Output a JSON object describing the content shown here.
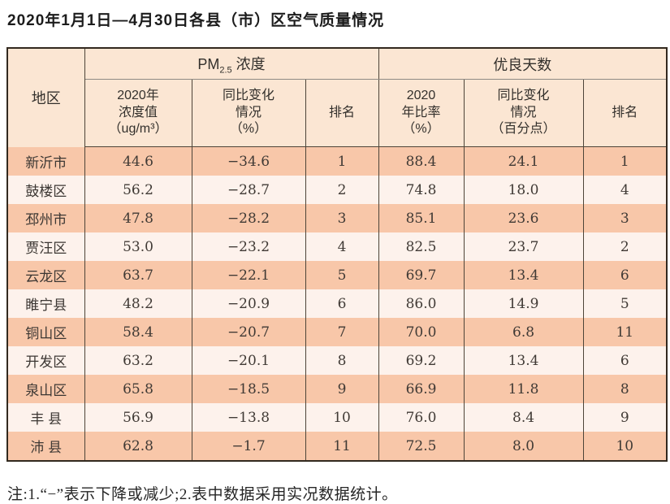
{
  "title": "2020年1月1日—4月30日各县（市）区空气质量情况",
  "table": {
    "headers": {
      "region": "地区",
      "pm_group_prefix": "PM",
      "pm_group_sub": "2.5",
      "pm_group_suffix": " 浓度",
      "good_group": "优良天数",
      "pm_value": "2020年\n浓度值\n（ug/m³）",
      "pm_change": "同比变化\n情况\n（%）",
      "pm_rank": "排名",
      "rate_value": "2020\n年比率\n（%）",
      "rate_change": "同比变化\n情况\n（百分点）",
      "rate_rank": "排名"
    },
    "rows": [
      {
        "region": "新沂市",
        "pm_value": "44.6",
        "pm_change": "−34.6",
        "pm_rank": "1",
        "rate_value": "88.4",
        "rate_change": "24.1",
        "rate_rank": "1"
      },
      {
        "region": "鼓楼区",
        "pm_value": "56.2",
        "pm_change": "−28.7",
        "pm_rank": "2",
        "rate_value": "74.8",
        "rate_change": "18.0",
        "rate_rank": "4"
      },
      {
        "region": "邳州市",
        "pm_value": "47.8",
        "pm_change": "−28.2",
        "pm_rank": "3",
        "rate_value": "85.1",
        "rate_change": "23.6",
        "rate_rank": "3"
      },
      {
        "region": "贾汪区",
        "pm_value": "53.0",
        "pm_change": "−23.2",
        "pm_rank": "4",
        "rate_value": "82.5",
        "rate_change": "23.7",
        "rate_rank": "2"
      },
      {
        "region": "云龙区",
        "pm_value": "63.7",
        "pm_change": "−22.1",
        "pm_rank": "5",
        "rate_value": "69.7",
        "rate_change": "13.4",
        "rate_rank": "6"
      },
      {
        "region": "睢宁县",
        "pm_value": "48.2",
        "pm_change": "−20.9",
        "pm_rank": "6",
        "rate_value": "86.0",
        "rate_change": "14.9",
        "rate_rank": "5"
      },
      {
        "region": "铜山区",
        "pm_value": "58.4",
        "pm_change": "−20.7",
        "pm_rank": "7",
        "rate_value": "70.0",
        "rate_change": "6.8",
        "rate_rank": "11"
      },
      {
        "region": "开发区",
        "pm_value": "63.2",
        "pm_change": "−20.1",
        "pm_rank": "8",
        "rate_value": "69.2",
        "rate_change": "13.4",
        "rate_rank": "6"
      },
      {
        "region": "泉山区",
        "pm_value": "65.8",
        "pm_change": "−18.5",
        "pm_rank": "9",
        "rate_value": "66.9",
        "rate_change": "11.8",
        "rate_rank": "8"
      },
      {
        "region": "丰 县",
        "pm_value": "56.9",
        "pm_change": "−13.8",
        "pm_rank": "10",
        "rate_value": "76.0",
        "rate_change": "8.4",
        "rate_rank": "9"
      },
      {
        "region": "沛 县",
        "pm_value": "62.8",
        "pm_change": "−1.7",
        "pm_rank": "11",
        "rate_value": "72.5",
        "rate_change": "8.0",
        "rate_rank": "10"
      }
    ]
  },
  "note": "注:1.“−”表示下降或减少;2.表中数据采用实况数据统计。",
  "colors": {
    "row_odd_bg": "#f8c7a9",
    "row_even_bg": "#fdf2ec",
    "header_bg": "#fbe6d3",
    "outer_border": "#32291f",
    "inner_border": "#4d4438"
  }
}
